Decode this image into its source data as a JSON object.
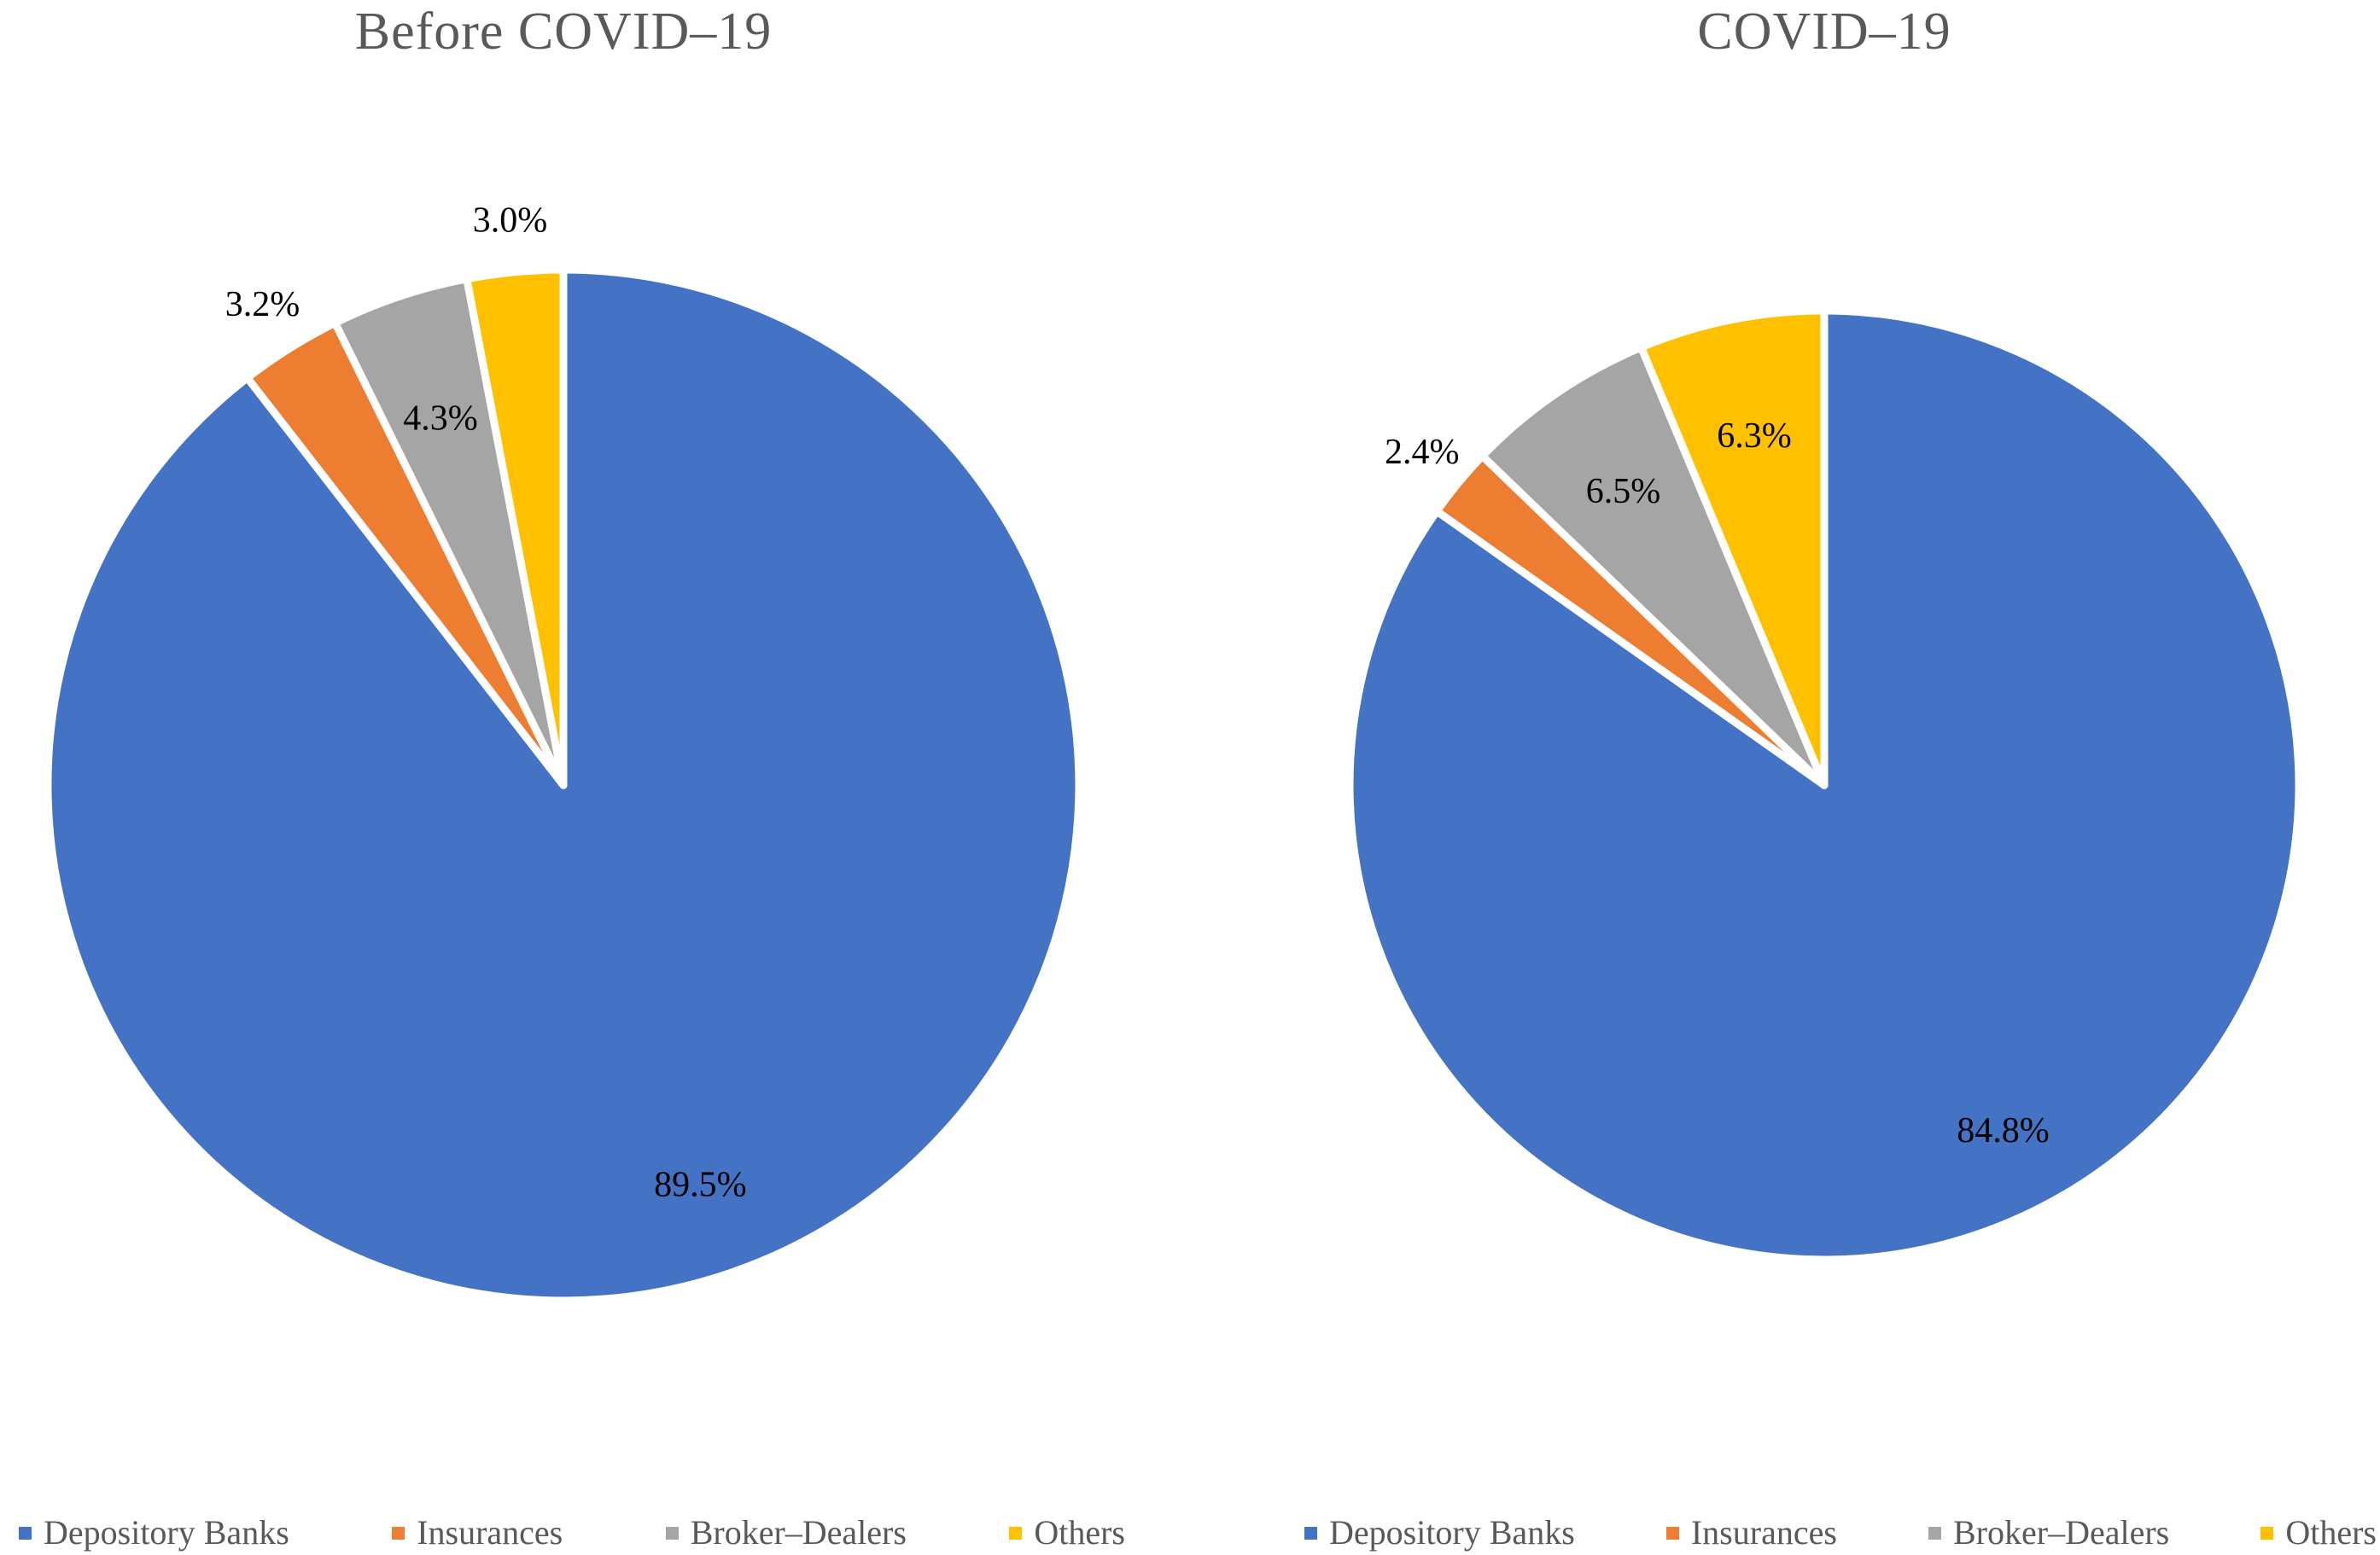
{
  "page": {
    "background_color": "#ffffff",
    "title_color": "#595959",
    "label_color": "#000000",
    "slice_border_color": "#ffffff"
  },
  "chart_data": [
    {
      "type": "pie",
      "title": "Before COVID–19",
      "categories": [
        "Depository Banks",
        "Insurances",
        "Broker–Dealers",
        "Others"
      ],
      "values": [
        89.5,
        3.2,
        4.3,
        3.0
      ],
      "data_labels": [
        "89.5%",
        "3.2%",
        "4.3%",
        "3.0%"
      ],
      "label_placement": [
        "inside",
        "outside",
        "inside",
        "outside"
      ],
      "colors": [
        "#4472C4",
        "#ED7D31",
        "#A5A5A5",
        "#FFC000"
      ],
      "start_angle_deg": 0,
      "direction": "clockwise",
      "legend_position": "bottom"
    },
    {
      "type": "pie",
      "title": "COVID–19",
      "categories": [
        "Depository Banks",
        "Insurances",
        "Broker–Dealers",
        "Others"
      ],
      "values": [
        84.8,
        2.4,
        6.5,
        6.3
      ],
      "data_labels": [
        "84.8%",
        "2.4%",
        "6.5%",
        "6.3%"
      ],
      "label_placement": [
        "inside",
        "outside",
        "inside",
        "inside"
      ],
      "colors": [
        "#4472C4",
        "#ED7D31",
        "#A5A5A5",
        "#FFC000"
      ],
      "start_angle_deg": 0,
      "direction": "clockwise",
      "legend_position": "bottom"
    }
  ]
}
